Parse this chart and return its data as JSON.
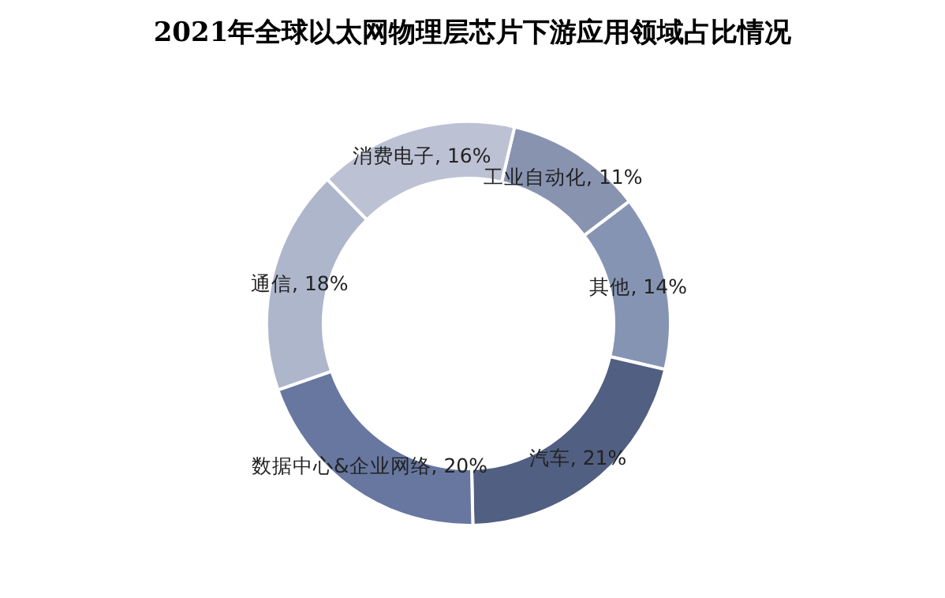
{
  "chart_data": {
    "type": "donut",
    "title": "2021年全球以太网物理层芯片下游应用领域占比情况",
    "categories": [
      "工业自动化",
      "其他",
      "汽车",
      "数据中心&企业网络",
      "通信",
      "消费电子"
    ],
    "values": [
      11,
      14,
      21,
      20,
      18,
      16
    ],
    "value_labels": [
      "11%",
      "14%",
      "21%",
      "20%",
      "18%",
      "16%"
    ],
    "colors": [
      "#8893b0",
      "#8694b4",
      "#515f82",
      "#6777a0",
      "#aeb6cb",
      "#bcc2d4"
    ],
    "legend": false
  }
}
